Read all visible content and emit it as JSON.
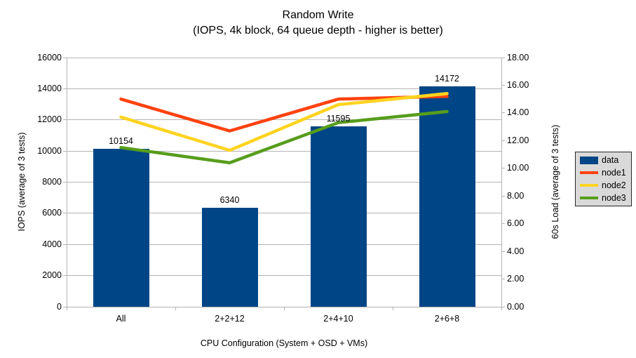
{
  "title": "Random Write",
  "subtitle": "(IOPS, 4k block, 64 queue depth - higher is better)",
  "chart_data": {
    "type": "bar+line",
    "title": "Random Write",
    "subtitle": "(IOPS, 4k block, 64 queue depth - higher is better)",
    "categories": [
      "All",
      "2+2+12",
      "2+4+10",
      "2+6+8"
    ],
    "series": [
      {
        "name": "data",
        "type": "bar",
        "axis": "left",
        "color": "#004586",
        "values": [
          10154,
          6340,
          11595,
          14172
        ],
        "data_labels": [
          "10154",
          "6340",
          "11595",
          "14172"
        ]
      },
      {
        "name": "node1",
        "type": "line",
        "axis": "right",
        "color": "#ff420e",
        "values": [
          15.0,
          12.7,
          15.0,
          15.2
        ]
      },
      {
        "name": "node2",
        "type": "line",
        "axis": "right",
        "color": "#ffd320",
        "values": [
          13.7,
          11.3,
          14.6,
          15.4
        ]
      },
      {
        "name": "node3",
        "type": "line",
        "axis": "right",
        "color": "#579d1c",
        "values": [
          11.5,
          10.4,
          13.3,
          14.1
        ]
      }
    ],
    "left_axis": {
      "title": "IOPS (average of 3 tests)",
      "min": 0,
      "max": 16000,
      "step": 2000,
      "decimals": 0
    },
    "right_axis": {
      "title": "60s Load (average of 3 tests)",
      "min": 0,
      "max": 18,
      "step": 2,
      "decimals": 2
    },
    "x_axis": {
      "title": "CPU Configuration (System + OSD + VMs)"
    },
    "legend": {
      "position": "right",
      "entries": [
        "data",
        "node1",
        "node2",
        "node3"
      ]
    },
    "grid": {
      "horizontal": true,
      "vertical": false
    },
    "colors": {
      "background": "#ffffff",
      "gridline": "#b3b3b3",
      "axis": "#b3b3b3",
      "text": "#000000",
      "legend_bg": "#d9d9d9",
      "legend_border": "#262626"
    }
  }
}
